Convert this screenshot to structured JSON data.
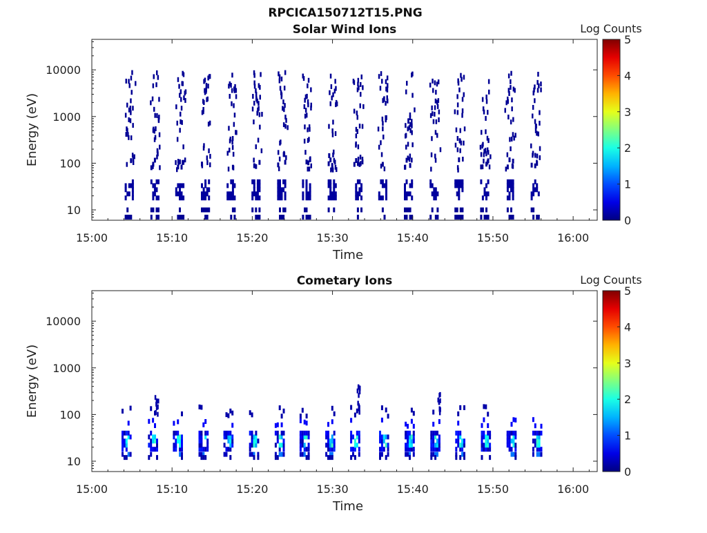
{
  "figure_title": "RPCICA150712T15.PNG",
  "chart_data": [
    {
      "type": "heatmap",
      "title": "Solar Wind Ions",
      "xlabel": "Time",
      "ylabel": "Energy (eV)",
      "x_ticks": [
        "15:00",
        "15:10",
        "15:20",
        "15:30",
        "15:40",
        "15:50",
        "16:00"
      ],
      "x_range_min": [
        0,
        63
      ],
      "y_ticks": [
        "10",
        "100",
        "1000",
        "10000"
      ],
      "y_scale": "log",
      "y_range": [
        6,
        45000
      ],
      "colorbar": {
        "label": "Log Counts",
        "range": [
          0,
          5
        ],
        "ticks": [
          "0",
          "1",
          "2",
          "3",
          "4",
          "5"
        ],
        "colormap": "jet"
      },
      "scan_times_min": [
        4.5,
        7.7,
        10.8,
        14.0,
        17.2,
        20.3,
        23.5,
        26.6,
        29.8,
        33.0,
        36.1,
        39.3,
        42.5,
        45.6,
        48.8,
        51.9,
        55.1
      ],
      "scan_profile": "solar_wind"
    },
    {
      "type": "heatmap",
      "title": "Cometary Ions",
      "xlabel": "Time",
      "ylabel": "Energy (eV)",
      "x_ticks": [
        "15:00",
        "15:10",
        "15:20",
        "15:30",
        "15:40",
        "15:50",
        "16:00"
      ],
      "x_range_min": [
        0,
        63
      ],
      "y_ticks": [
        "10",
        "100",
        "1000",
        "10000"
      ],
      "y_scale": "log",
      "y_range": [
        6,
        45000
      ],
      "colorbar": {
        "label": "Log Counts",
        "range": [
          0,
          5
        ],
        "ticks": [
          "0",
          "1",
          "2",
          "3",
          "4",
          "5"
        ],
        "colormap": "jet"
      },
      "scan_times_min": [
        4.0,
        7.3,
        10.4,
        13.6,
        16.7,
        19.9,
        23.1,
        26.2,
        29.4,
        32.5,
        36.1,
        39.3,
        42.5,
        45.6,
        48.8,
        52.0,
        55.2
      ],
      "scan_profile": "cometary"
    }
  ]
}
